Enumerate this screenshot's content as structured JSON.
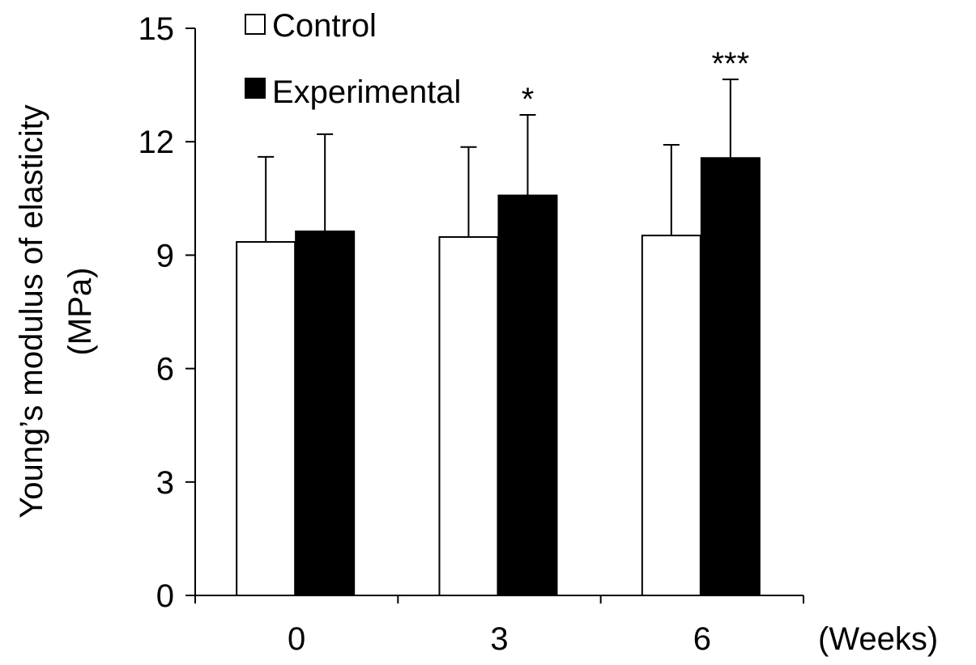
{
  "chart_data": {
    "type": "bar",
    "title": "",
    "ylabel_line1": "Young’s modulus of elasticity",
    "ylabel_line2": "(MPa)",
    "xlabel": "(Weeks)",
    "ylim": [
      0,
      15
    ],
    "yticks": [
      "0",
      "3",
      "6",
      "9",
      "12",
      "15"
    ],
    "categories": [
      "0",
      "3",
      "6"
    ],
    "series": [
      {
        "name": "Control",
        "fill": "#ffffff",
        "values": [
          9.35,
          9.48,
          9.52
        ],
        "errors": [
          2.25,
          2.38,
          2.4
        ],
        "annotations": [
          "",
          "",
          ""
        ]
      },
      {
        "name": "Experimental",
        "fill": "#000000",
        "values": [
          9.63,
          10.58,
          11.57
        ],
        "errors": [
          2.57,
          2.13,
          2.08
        ],
        "annotations": [
          "",
          "*",
          "***"
        ]
      }
    ],
    "grid": false,
    "legend_position": "top-left"
  }
}
